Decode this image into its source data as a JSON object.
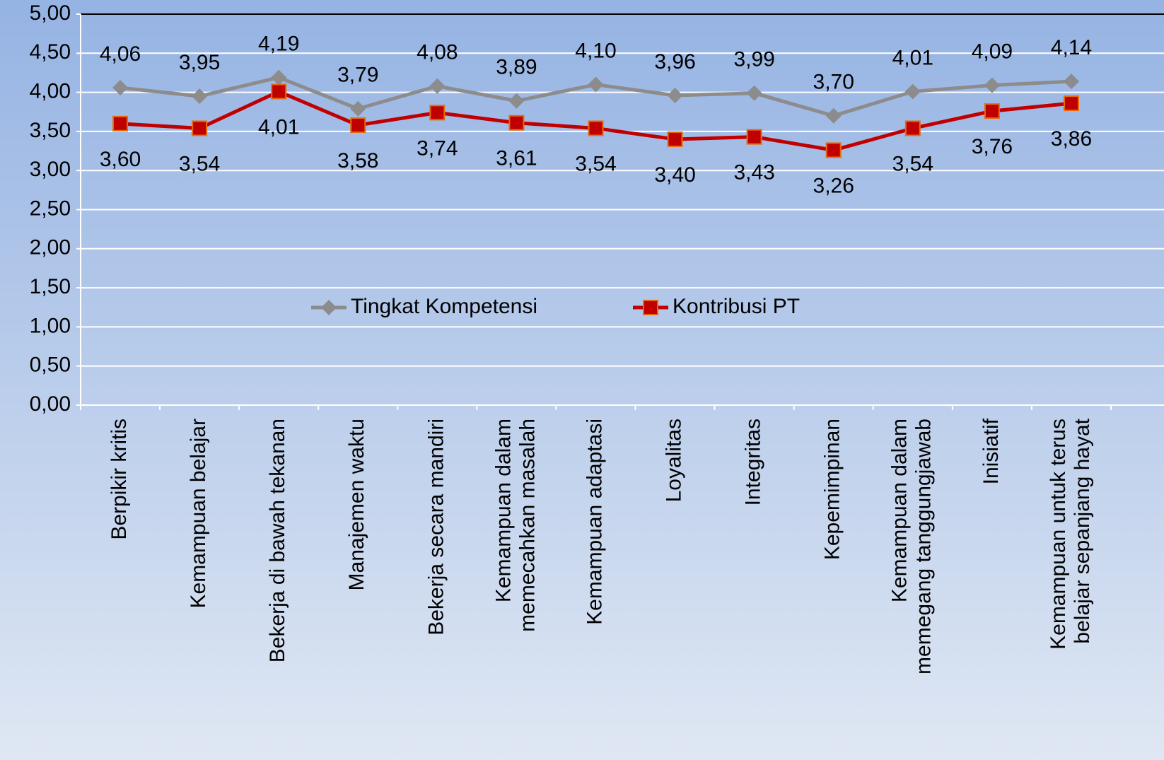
{
  "chart_data": {
    "type": "line",
    "categories": [
      [
        "Berpikir kritis"
      ],
      [
        "Kemampuan belajar"
      ],
      [
        "Bekerja di bawah tekanan"
      ],
      [
        "Manajemen waktu"
      ],
      [
        "Bekerja secara mandiri"
      ],
      [
        "Kemampuan dalam",
        "memecahkan masalah"
      ],
      [
        "Kemampuan adaptasi"
      ],
      [
        "Loyalitas"
      ],
      [
        "Integritas"
      ],
      [
        "Kepemimpinan"
      ],
      [
        "Kemampuan dalam",
        "memegang tanggungjawab"
      ],
      [
        "Inisiatif"
      ],
      [
        "Kemampuan untuk terus",
        "belajar sepanjang hayat"
      ]
    ],
    "series": [
      {
        "name": "Tingkat Kompetensi",
        "color": "#8c8c8c",
        "marker": "diamond",
        "label_position": "above",
        "values": [
          4.06,
          3.95,
          4.19,
          3.79,
          4.08,
          3.89,
          4.1,
          3.96,
          3.99,
          3.7,
          4.01,
          4.09,
          4.14
        ],
        "value_labels": [
          "4,06",
          "3,95",
          "4,19",
          "3,79",
          "4,08",
          "3,89",
          "4,10",
          "3,96",
          "3,99",
          "3,70",
          "4,01",
          "4,09",
          "4,14"
        ]
      },
      {
        "name": "Kontribusi PT",
        "color": "#c00000",
        "marker": "square",
        "label_position": "below",
        "values": [
          3.6,
          3.54,
          4.01,
          3.58,
          3.74,
          3.61,
          3.54,
          3.4,
          3.43,
          3.26,
          3.54,
          3.76,
          3.86
        ],
        "value_labels": [
          "3,60",
          "3,54",
          "4,01",
          "3,58",
          "3,74",
          "3,61",
          "3,54",
          "3,40",
          "3,43",
          "3,26",
          "3,54",
          "3,76",
          "3,86"
        ]
      }
    ],
    "ylim": [
      0,
      5
    ],
    "yticks": [
      {
        "value": 0,
        "label": "0,00"
      },
      {
        "value": 0.5,
        "label": "0,50"
      },
      {
        "value": 1,
        "label": "1,00"
      },
      {
        "value": 1.5,
        "label": "1,50"
      },
      {
        "value": 2,
        "label": "2,00"
      },
      {
        "value": 2.5,
        "label": "2,50"
      },
      {
        "value": 3,
        "label": "3,00"
      },
      {
        "value": 3.5,
        "label": "3,50"
      },
      {
        "value": 4,
        "label": "4,00"
      },
      {
        "value": 4.5,
        "label": "4,50"
      },
      {
        "value": 5,
        "label": "5,00"
      }
    ],
    "grid": true,
    "legend": "center"
  }
}
